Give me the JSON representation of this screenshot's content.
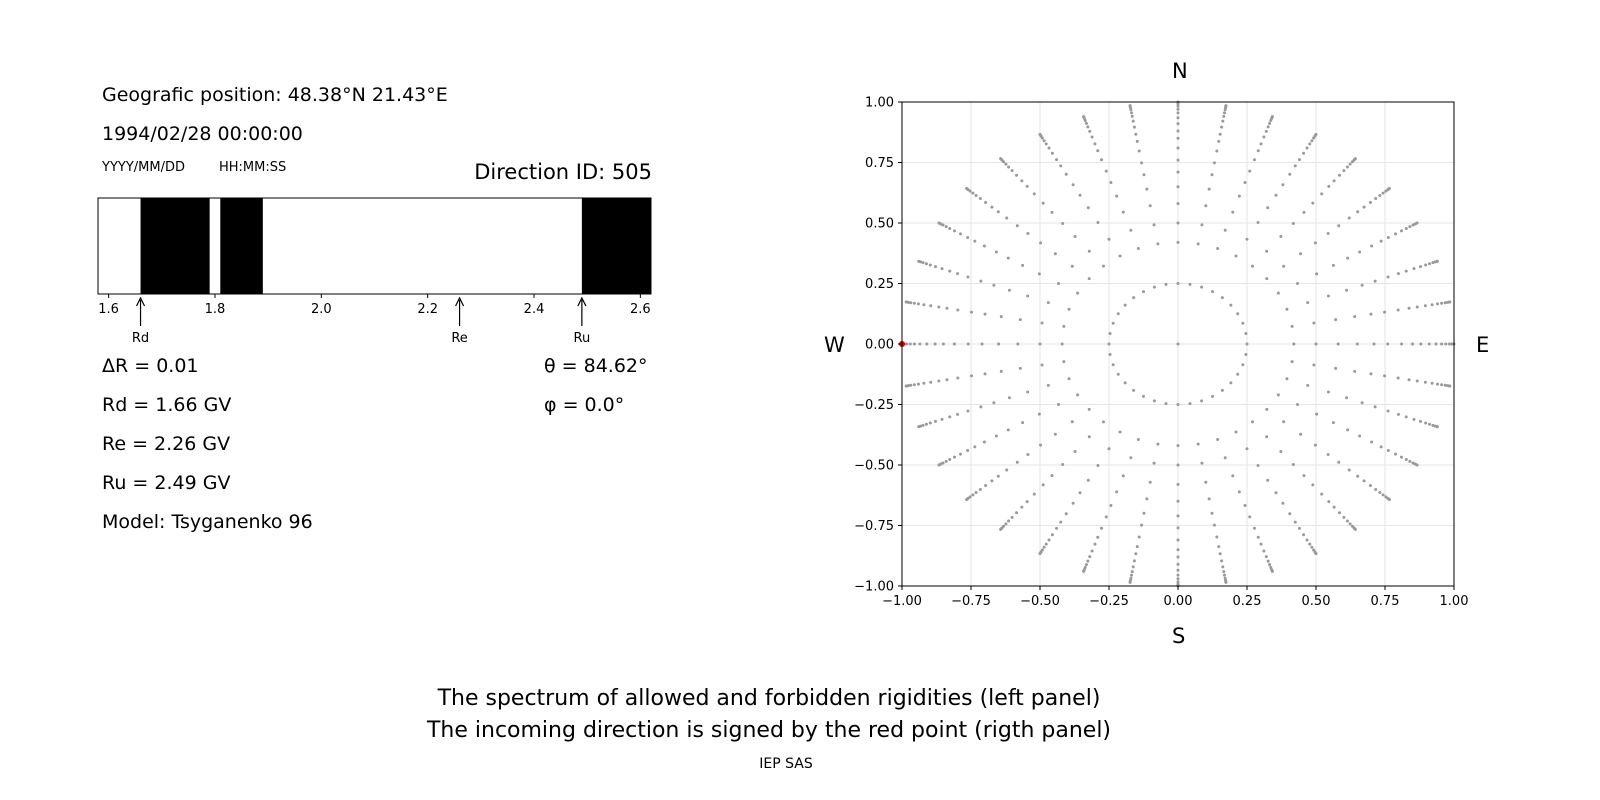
{
  "left_panel": {
    "position_text": "Geografic position: 48.38°N 21.43°E",
    "datetime": "1994/02/28 00:00:00",
    "date_format_label": "YYYY/MM/DD",
    "time_format_label": "HH:MM:SS",
    "direction_id": "Direction ID: 505",
    "delta_r": "ΔR = 0.01",
    "rd_text": "Rd = 1.66 GV",
    "re_text": "Re = 2.26 GV",
    "ru_text": "Ru = 2.49 GV",
    "model_text": "Model: Tsyganenko 96",
    "theta_text": "θ = 84.62°",
    "phi_text": "φ = 0.0°"
  },
  "compass": {
    "north": "N",
    "south": "S",
    "west": "W",
    "east": "E"
  },
  "caption": {
    "line1": "The spectrum of allowed and forbidden rigidities (left panel)",
    "line2": "The incoming direction is signed by the red point (rigth panel)"
  },
  "credit": "IEP SAS",
  "colors": {
    "forbidden": "#000000",
    "allowed": "#ffffff",
    "grid_point": "#999999",
    "incoming_point": "#dd0000",
    "grid_line": "#e6e6e6"
  },
  "chart_data": [
    {
      "type": "bar",
      "title": "",
      "xlim": [
        1.58,
        2.62
      ],
      "xticks": [
        1.6,
        1.8,
        2.0,
        2.2,
        2.4,
        2.6
      ],
      "xtick_labels": [
        "1.6",
        "1.8",
        "2.0",
        "2.2",
        "2.4",
        "2.6"
      ],
      "forbidden_intervals": [
        [
          1.66,
          1.79
        ],
        [
          1.81,
          1.89
        ],
        [
          2.49,
          2.62
        ]
      ],
      "markers": [
        {
          "label": "Rd",
          "value": 1.66
        },
        {
          "label": "Re",
          "value": 2.26
        },
        {
          "label": "Ru",
          "value": 2.49
        }
      ]
    },
    {
      "type": "scatter",
      "title": "",
      "xlim": [
        -1.0,
        1.0
      ],
      "ylim": [
        -1.0,
        1.0
      ],
      "xticks": [
        -1.0,
        -0.75,
        -0.5,
        -0.25,
        0.0,
        0.25,
        0.5,
        0.75,
        1.0
      ],
      "yticks": [
        -1.0,
        -0.75,
        -0.5,
        -0.25,
        0.0,
        0.25,
        0.5,
        0.75,
        1.0
      ],
      "xtick_labels": [
        "−1.00",
        "−0.75",
        "−0.50",
        "−0.25",
        "0.00",
        "0.25",
        "0.50",
        "0.75",
        "1.00"
      ],
      "ytick_labels": [
        "−1.00",
        "−0.75",
        "−0.50",
        "−0.25",
        "0.00",
        "0.25",
        "0.50",
        "0.75",
        "1.00"
      ],
      "grid": true,
      "direction_grid": {
        "center": [
          0.0,
          0.0
        ],
        "ring_radii": [
          0.25,
          0.42,
          0.5,
          0.58,
          0.65,
          0.71,
          0.76,
          0.81,
          0.85,
          0.88,
          0.91,
          0.935,
          0.955,
          0.97,
          0.983,
          0.992,
          0.998,
          1.0
        ],
        "inner_ring_points": 36,
        "radial_angles_deg": [
          0,
          10,
          20,
          30,
          40,
          50,
          60,
          70,
          80,
          90,
          100,
          110,
          120,
          130,
          140,
          150,
          160,
          170,
          180,
          190,
          200,
          210,
          220,
          230,
          240,
          250,
          260,
          270,
          280,
          290,
          300,
          310,
          320,
          330,
          340,
          350
        ]
      },
      "incoming_point": {
        "x": -1.0,
        "y": 0.0
      }
    }
  ]
}
